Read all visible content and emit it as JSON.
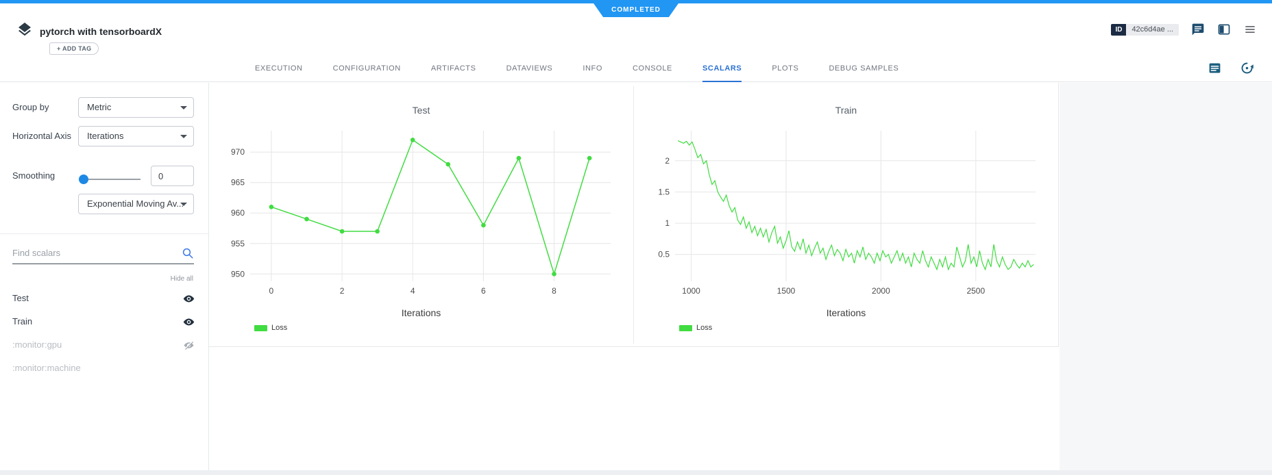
{
  "status_ribbon": {
    "label": "COMPLETED"
  },
  "header": {
    "title": "pytorch with tensorboardX",
    "add_tag_label": "+ ADD TAG",
    "id_label": "ID",
    "id_value": "42c6d4ae ..."
  },
  "tabs": [
    "EXECUTION",
    "CONFIGURATION",
    "ARTIFACTS",
    "DATAVIEWS",
    "INFO",
    "CONSOLE",
    "SCALARS",
    "PLOTS",
    "DEBUG SAMPLES"
  ],
  "active_tab": "SCALARS",
  "sidebar": {
    "group_by_label": "Group by",
    "group_by_value": "Metric",
    "horizontal_axis_label": "Horizontal Axis",
    "horizontal_axis_value": "Iterations",
    "smoothing_label": "Smoothing",
    "smoothing_value": "0",
    "smoothing_method": "Exponential Moving Av...",
    "find_placeholder": "Find scalars",
    "hide_all_label": "Hide all",
    "scalars": [
      {
        "label": "Test",
        "visible": true,
        "enabled": true
      },
      {
        "label": "Train",
        "visible": true,
        "enabled": true
      },
      {
        "label": ":monitor:gpu",
        "visible": false,
        "enabled": false
      },
      {
        "label": ":monitor:machine",
        "visible": null,
        "enabled": false
      }
    ]
  },
  "colors": {
    "accent_blue": "#2196f3",
    "tab_active_blue": "#2a72d4",
    "line_green": "#41dc41"
  },
  "chart_data": [
    {
      "type": "line",
      "title": "Test",
      "xlabel": "Iterations",
      "xlim": [
        -0.6,
        9.6
      ],
      "ylim": [
        948.8,
        973.5
      ],
      "xticks": [
        0,
        2,
        4,
        6,
        8
      ],
      "yticks": [
        950,
        955,
        960,
        965,
        970
      ],
      "grid": true,
      "legend_position": "bottom-left",
      "series": [
        {
          "name": "Loss",
          "color": "#41dc41",
          "markers": true,
          "x": [
            0,
            1,
            2,
            3,
            4,
            5,
            6,
            7,
            8,
            9
          ],
          "y": [
            961,
            959,
            957,
            957,
            972,
            968,
            958,
            969,
            950,
            969
          ]
        }
      ]
    },
    {
      "type": "line",
      "title": "Train",
      "xlabel": "Iterations",
      "xlim": [
        915,
        2815
      ],
      "ylim": [
        0.07,
        2.48
      ],
      "xticks": [
        1000,
        1500,
        2000,
        2500
      ],
      "yticks": [
        0.5,
        1,
        1.5,
        2
      ],
      "grid": true,
      "legend_position": "bottom-left",
      "series": [
        {
          "name": "Loss",
          "color": "#41dc41",
          "markers": false,
          "x_start": 930,
          "x_step": 15,
          "y": [
            2.32,
            2.3,
            2.28,
            2.31,
            2.25,
            2.3,
            2.18,
            2.05,
            2.1,
            1.95,
            2.0,
            1.78,
            1.62,
            1.68,
            1.5,
            1.42,
            1.35,
            1.45,
            1.28,
            1.18,
            1.25,
            1.05,
            0.98,
            1.1,
            0.92,
            1.02,
            0.85,
            0.95,
            0.8,
            0.92,
            0.78,
            0.9,
            0.7,
            0.85,
            0.95,
            0.68,
            0.78,
            0.6,
            0.72,
            0.88,
            0.62,
            0.55,
            0.7,
            0.58,
            0.75,
            0.52,
            0.65,
            0.48,
            0.6,
            0.7,
            0.52,
            0.6,
            0.42,
            0.55,
            0.65,
            0.48,
            0.58,
            0.52,
            0.4,
            0.58,
            0.46,
            0.52,
            0.36,
            0.56,
            0.46,
            0.62,
            0.42,
            0.52,
            0.46,
            0.36,
            0.52,
            0.4,
            0.56,
            0.46,
            0.5,
            0.36,
            0.46,
            0.56,
            0.4,
            0.52,
            0.36,
            0.46,
            0.3,
            0.52,
            0.42,
            0.36,
            0.56,
            0.4,
            0.3,
            0.46,
            0.36,
            0.26,
            0.42,
            0.3,
            0.46,
            0.26,
            0.36,
            0.3,
            0.62,
            0.46,
            0.3,
            0.4,
            0.66,
            0.36,
            0.46,
            0.3,
            0.56,
            0.36,
            0.26,
            0.42,
            0.3,
            0.66,
            0.4,
            0.3,
            0.46,
            0.34,
            0.26,
            0.3,
            0.42,
            0.34,
            0.28,
            0.36,
            0.3,
            0.4,
            0.3,
            0.34
          ]
        }
      ]
    }
  ]
}
